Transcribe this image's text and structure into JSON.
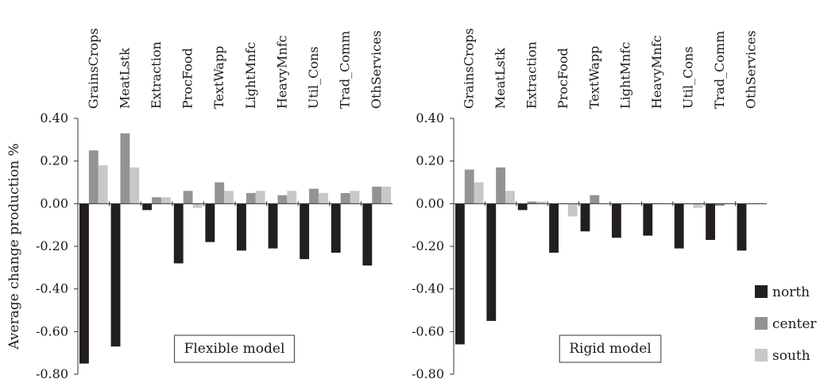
{
  "chart_data": [
    {
      "type": "bar",
      "panel_label": "Flexible model",
      "ylabel": "Average change production %",
      "ylim": [
        -0.8,
        0.4
      ],
      "yticks": [
        "0.40",
        "0.20",
        "0.00",
        "-0.20",
        "-0.40",
        "-0.60",
        "-0.80"
      ],
      "categories": [
        "GrainsCrops",
        "MeatLstk",
        "Extraction",
        "ProcFood",
        "TextWapp",
        "LightMnfc",
        "HeavyMnfc",
        "Util_Cons",
        "Trad_Comm",
        "OthServices"
      ],
      "series": [
        {
          "name": "north",
          "color": "#231f20",
          "values": [
            -0.75,
            -0.67,
            -0.03,
            -0.28,
            -0.18,
            -0.22,
            -0.21,
            -0.26,
            -0.23,
            -0.29
          ]
        },
        {
          "name": "center",
          "color": "#939393",
          "values": [
            0.25,
            0.33,
            0.03,
            0.06,
            0.1,
            0.05,
            0.04,
            0.07,
            0.05,
            0.08
          ]
        },
        {
          "name": "south",
          "color": "#c8c8c8",
          "values": [
            0.18,
            0.17,
            0.03,
            -0.02,
            0.06,
            0.06,
            0.06,
            0.05,
            0.06,
            0.08
          ]
        }
      ]
    },
    {
      "type": "bar",
      "panel_label": "Rigid model",
      "ylim": [
        -0.8,
        0.4
      ],
      "yticks": [
        "0.40",
        "0.20",
        "0.00",
        "-0.20",
        "-0.40",
        "-0.60",
        "-0.80"
      ],
      "categories": [
        "GrainsCrops",
        "MeatLstk",
        "Extraction",
        "ProcFood",
        "TextWapp",
        "LightMnfc",
        "HeavyMnfc",
        "Util_Cons",
        "Trad_Comm",
        "OthServices"
      ],
      "series": [
        {
          "name": "north",
          "color": "#231f20",
          "values": [
            -0.66,
            -0.55,
            -0.03,
            -0.23,
            -0.13,
            -0.16,
            -0.15,
            -0.21,
            -0.17,
            -0.22
          ]
        },
        {
          "name": "center",
          "color": "#939393",
          "values": [
            0.16,
            0.17,
            0.01,
            0.0,
            0.04,
            0.0,
            0.0,
            0.0,
            -0.01,
            0.0
          ]
        },
        {
          "name": "south",
          "color": "#c8c8c8",
          "values": [
            0.1,
            0.06,
            0.01,
            -0.06,
            0.0,
            0.0,
            0.0,
            -0.02,
            0.0,
            0.0
          ]
        }
      ]
    }
  ],
  "legend": {
    "entries": [
      {
        "label": "north",
        "color": "#231f20"
      },
      {
        "label": "center",
        "color": "#939393"
      },
      {
        "label": "south",
        "color": "#c8c8c8"
      }
    ]
  }
}
